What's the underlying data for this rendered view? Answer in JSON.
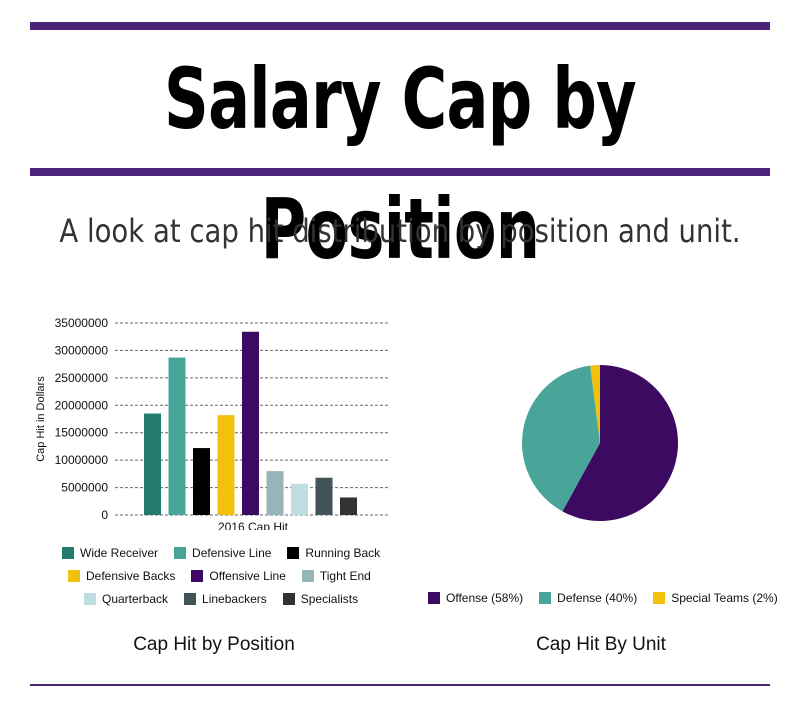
{
  "header": {
    "title": "Salary Cap by Position",
    "subtitle": "A look at cap hit distribution by position and unit."
  },
  "colors": {
    "accent": "#4b2379"
  },
  "chart_data": [
    {
      "type": "bar",
      "title": "Cap Hit by Position",
      "xlabel": "2016 Cap Hit",
      "ylabel": "Cap Hit in Dollars",
      "ylim": [
        0,
        35000000
      ],
      "yticks": [
        0,
        5000000,
        10000000,
        15000000,
        20000000,
        25000000,
        30000000,
        35000000
      ],
      "yticklabels": [
        "0",
        "5000000",
        "10000000",
        "15000000",
        "20000000",
        "25000000",
        "30000000",
        "35000000"
      ],
      "grid": true,
      "legend_position": "bottom",
      "categories": [
        "2016 Cap Hit"
      ],
      "series": [
        {
          "name": "Wide Receiver",
          "values": [
            18500000
          ],
          "color": "#237a6e"
        },
        {
          "name": "Defensive Line",
          "values": [
            28700000
          ],
          "color": "#49a49a"
        },
        {
          "name": "Running Back",
          "values": [
            12200000
          ],
          "color": "#000000"
        },
        {
          "name": "Defensive Backs",
          "values": [
            18200000
          ],
          "color": "#f1c10c"
        },
        {
          "name": "Offensive Line",
          "values": [
            33400000
          ],
          "color": "#3c0a60"
        },
        {
          "name": "Tight End",
          "values": [
            8000000
          ],
          "color": "#98b4b8"
        },
        {
          "name": "Quarterback",
          "values": [
            5700000
          ],
          "color": "#c2dde2"
        },
        {
          "name": "Linebackers",
          "values": [
            6800000
          ],
          "color": "#435459"
        },
        {
          "name": "Specialists",
          "values": [
            3200000
          ],
          "color": "#333333"
        }
      ]
    },
    {
      "type": "pie",
      "title": "Cap Hit By Unit",
      "legend_position": "bottom",
      "slices": [
        {
          "label": "Offense (58%)",
          "value": 58,
          "color": "#3c0a60"
        },
        {
          "label": "Defense (40%)",
          "value": 40,
          "color": "#49a49a"
        },
        {
          "label": "Special Teams (2%)",
          "value": 2,
          "color": "#f1c10c"
        }
      ]
    }
  ]
}
